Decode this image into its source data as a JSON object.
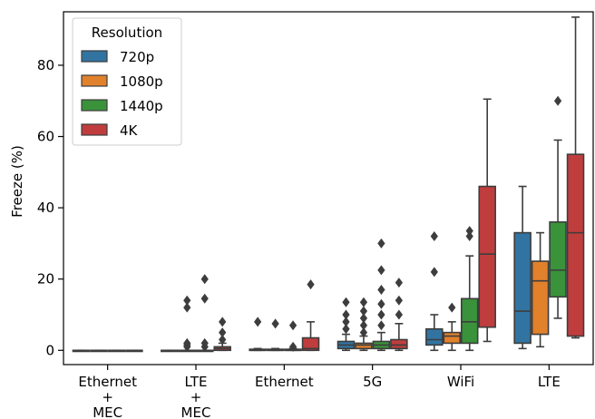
{
  "chart_data": {
    "type": "box",
    "ylabel": "Freeze (%)",
    "xlabel": "",
    "ylim": [
      -4,
      95
    ],
    "yticks": [
      0,
      20,
      40,
      60,
      80
    ],
    "categories": [
      [
        "Ethernet",
        "+",
        "MEC"
      ],
      [
        "LTE",
        "+",
        "MEC"
      ],
      [
        "Ethernet"
      ],
      [
        "5G"
      ],
      [
        "WiFi"
      ],
      [
        "LTE"
      ]
    ],
    "legend": {
      "title": "Resolution",
      "position": "top-left",
      "entries": [
        "720p",
        "1080p",
        "1440p",
        "4K"
      ]
    },
    "colors": {
      "720p": "#3274a1",
      "1080p": "#e1812c",
      "1440p": "#3a923a",
      "4K": "#c03d3e"
    },
    "series": [
      {
        "name": "720p",
        "boxes": [
          {
            "whislo": 0,
            "q1": 0,
            "med": 0,
            "q3": 0,
            "whishi": 0,
            "fliers": []
          },
          {
            "whislo": 0,
            "q1": 0,
            "med": 0,
            "q3": 0,
            "whishi": 0,
            "fliers": []
          },
          {
            "whislo": 0,
            "q1": 0,
            "med": 0,
            "q3": 0.3,
            "whishi": 0.5,
            "fliers": [
              8
            ]
          },
          {
            "whislo": 0,
            "q1": 0.5,
            "med": 1.5,
            "q3": 2.5,
            "whishi": 4.5,
            "fliers": [
              6,
              8,
              10,
              13.5
            ]
          },
          {
            "whislo": 0,
            "q1": 1.5,
            "med": 3,
            "q3": 6,
            "whishi": 10,
            "fliers": [
              22,
              32
            ]
          },
          {
            "whislo": 0.5,
            "q1": 2,
            "med": 11,
            "q3": 33,
            "whishi": 46,
            "fliers": []
          }
        ]
      },
      {
        "name": "1080p",
        "boxes": [
          {
            "whislo": 0,
            "q1": 0,
            "med": 0,
            "q3": 0,
            "whishi": 0,
            "fliers": []
          },
          {
            "whislo": 0,
            "q1": 0,
            "med": 0,
            "q3": 0,
            "whishi": 0,
            "fliers": [
              1,
              1.5,
              2,
              12,
              14
            ]
          },
          {
            "whislo": 0,
            "q1": 0,
            "med": 0,
            "q3": 0.3,
            "whishi": 0.5,
            "fliers": [
              7.5
            ]
          },
          {
            "whislo": 0,
            "q1": 0.5,
            "med": 1.5,
            "q3": 2,
            "whishi": 4,
            "fliers": [
              5,
              7,
              9,
              11,
              13.5
            ]
          },
          {
            "whislo": 0,
            "q1": 2,
            "med": 4,
            "q3": 5,
            "whishi": 8,
            "fliers": [
              12
            ]
          },
          {
            "whislo": 1,
            "q1": 4.5,
            "med": 19.5,
            "q3": 25,
            "whishi": 33,
            "fliers": []
          }
        ]
      },
      {
        "name": "1440p",
        "boxes": [
          {
            "whislo": 0,
            "q1": 0,
            "med": 0,
            "q3": 0,
            "whishi": 0,
            "fliers": []
          },
          {
            "whislo": 0,
            "q1": 0,
            "med": 0,
            "q3": 0,
            "whishi": 0,
            "fliers": [
              1,
              2,
              14.5,
              20
            ]
          },
          {
            "whislo": 0,
            "q1": 0,
            "med": 0,
            "q3": 0.3,
            "whishi": 0.5,
            "fliers": [
              1,
              7
            ]
          },
          {
            "whislo": 0,
            "q1": 0.5,
            "med": 1.5,
            "q3": 2.5,
            "whishi": 5,
            "fliers": [
              7,
              10,
              13,
              17,
              22.5,
              30
            ]
          },
          {
            "whislo": 0,
            "q1": 2,
            "med": 8,
            "q3": 14.5,
            "whishi": 26.5,
            "fliers": [
              32,
              33.5
            ]
          },
          {
            "whislo": 9,
            "q1": 15,
            "med": 22.5,
            "q3": 36,
            "whishi": 59,
            "fliers": [
              70
            ]
          }
        ]
      },
      {
        "name": "4K",
        "boxes": [
          {
            "whislo": 0,
            "q1": 0,
            "med": 0,
            "q3": 0,
            "whishi": 0,
            "fliers": []
          },
          {
            "whislo": 0,
            "q1": 0,
            "med": 0.5,
            "q3": 1,
            "whishi": 2,
            "fliers": [
              3,
              5,
              8
            ]
          },
          {
            "whislo": 0,
            "q1": 0,
            "med": 0.5,
            "q3": 3.5,
            "whishi": 8,
            "fliers": [
              18.5
            ]
          },
          {
            "whislo": 0,
            "q1": 0.5,
            "med": 1.5,
            "q3": 3,
            "whishi": 7.5,
            "fliers": [
              10,
              14,
              19
            ]
          },
          {
            "whislo": 2.5,
            "q1": 6.5,
            "med": 27,
            "q3": 46,
            "whishi": 70.5,
            "fliers": []
          },
          {
            "whislo": 3.5,
            "q1": 4,
            "med": 33,
            "q3": 55,
            "whishi": 93.5,
            "fliers": []
          }
        ]
      }
    ]
  }
}
